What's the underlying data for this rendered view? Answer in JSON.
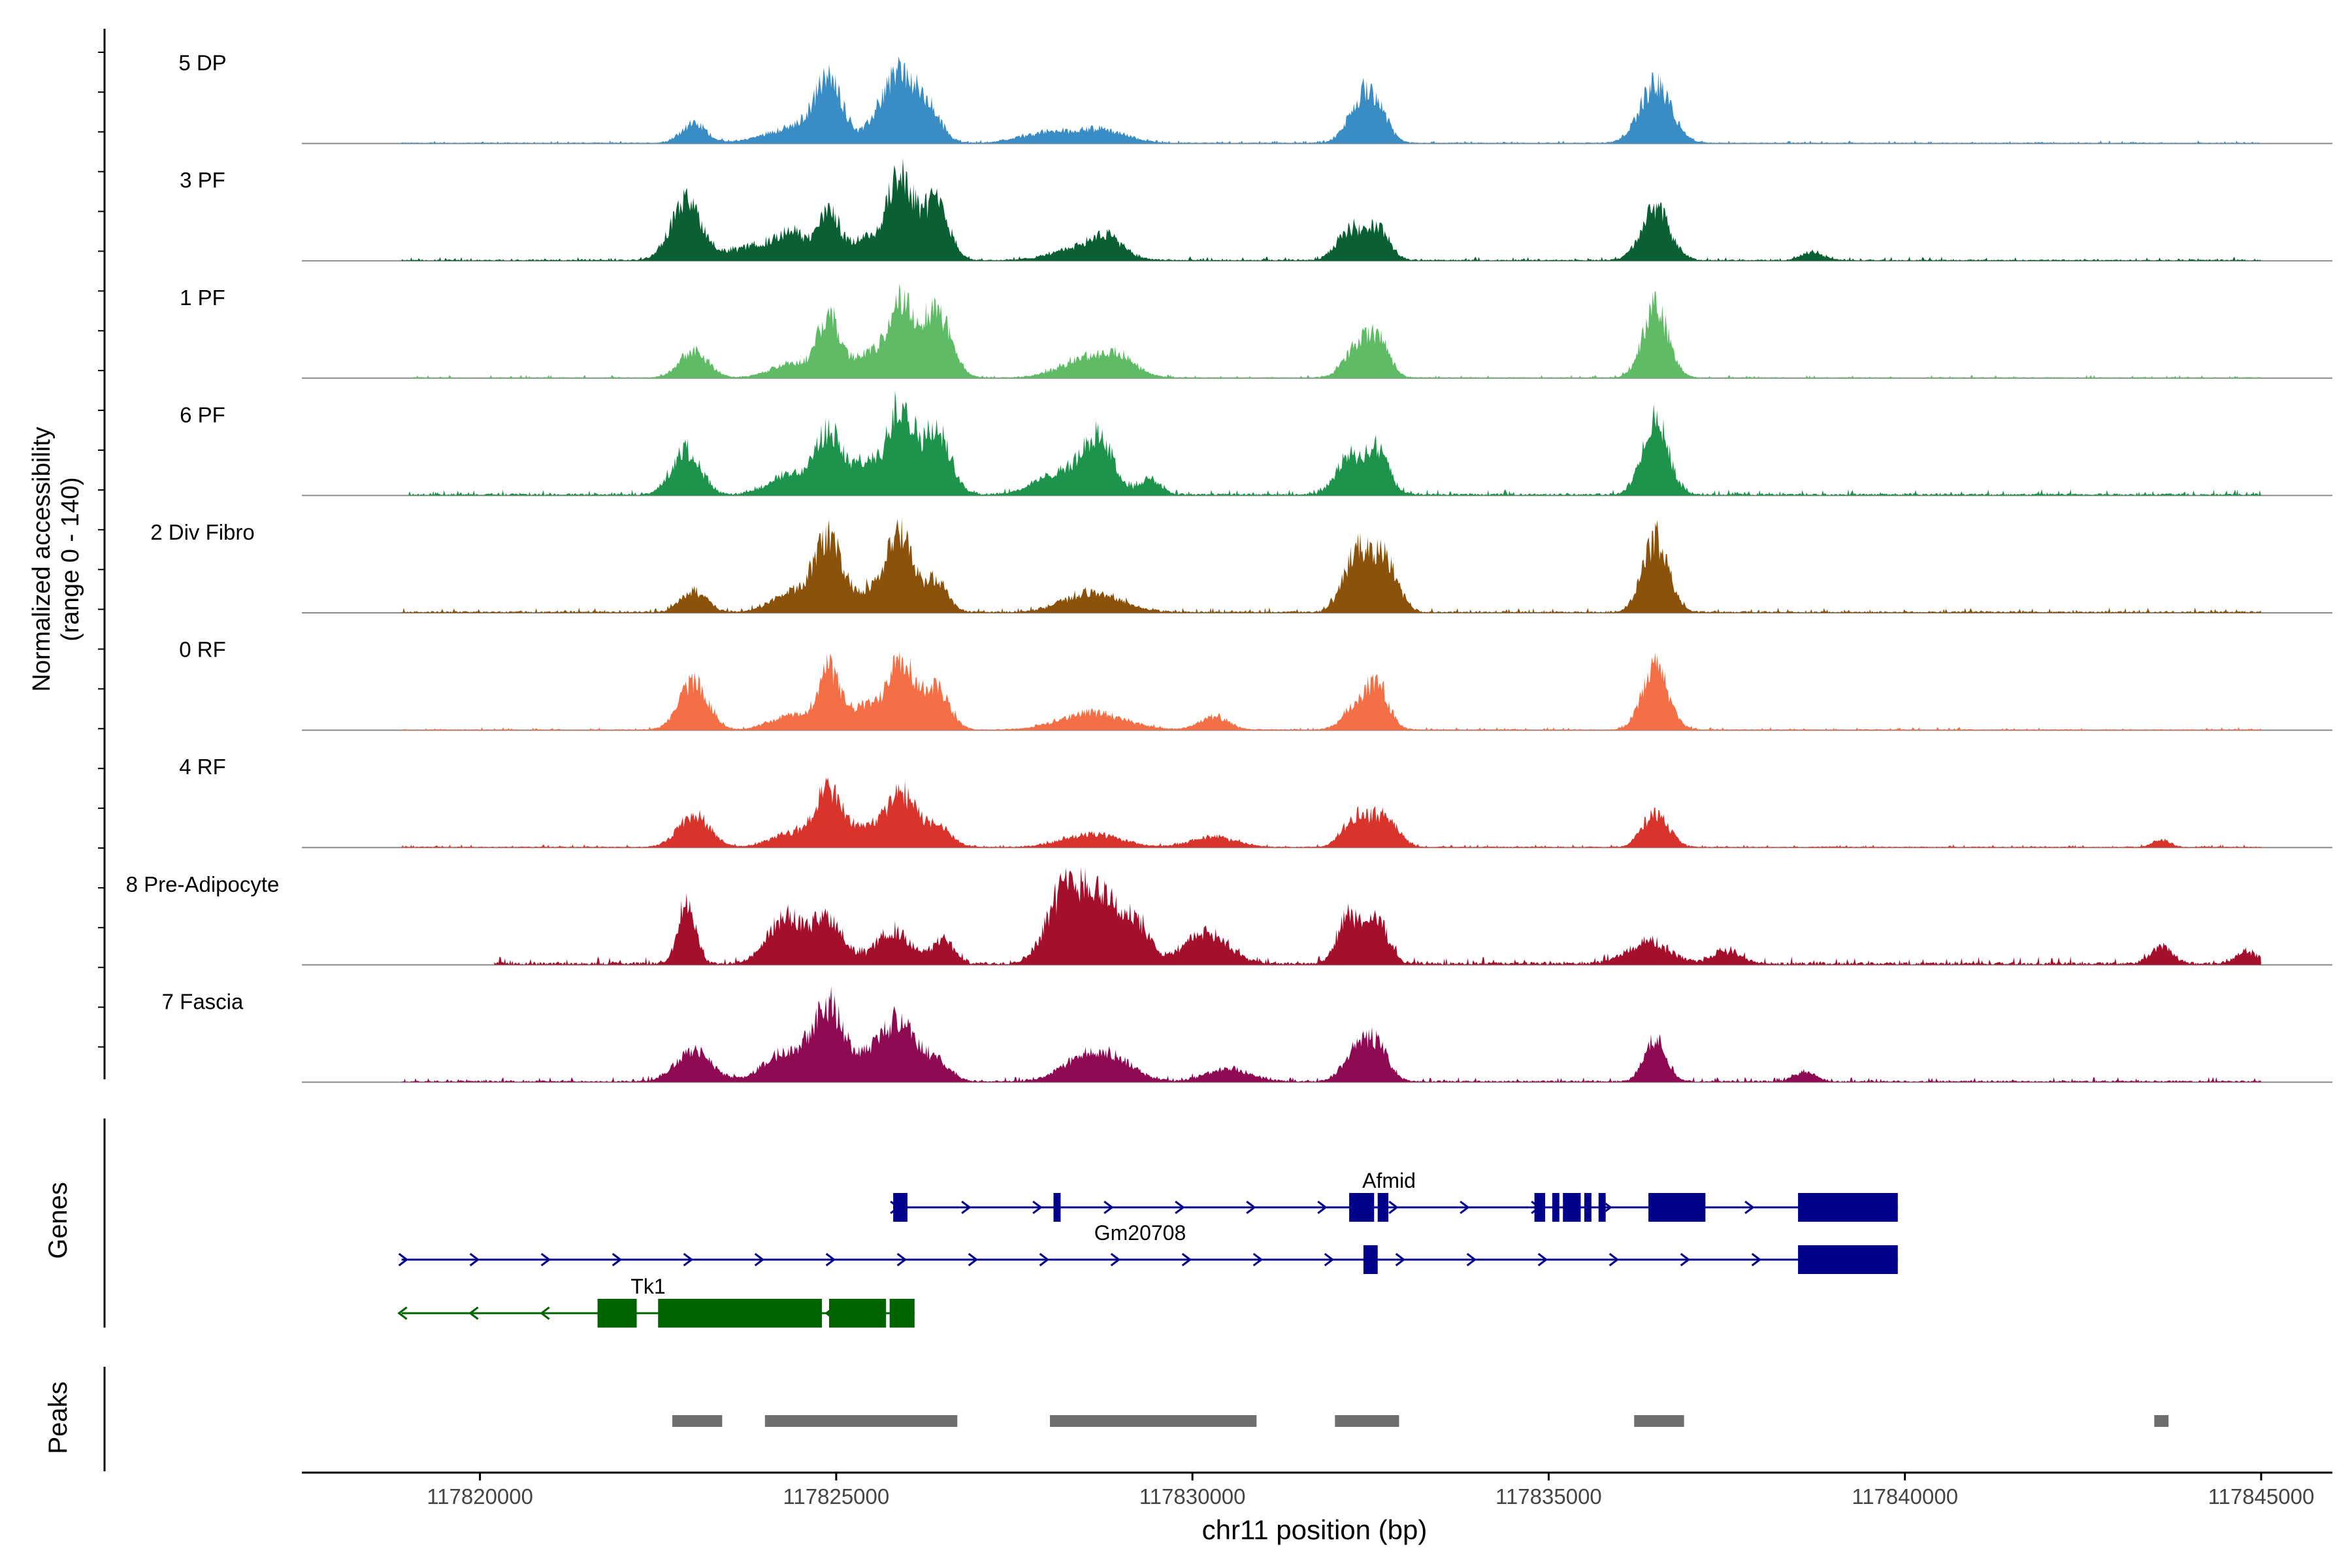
{
  "chart_data": {
    "type": "area",
    "chromosome": "chr11",
    "x_range": [
      117817500,
      117846000
    ],
    "y_label_line1": "Normalized accessibility",
    "y_label_line2": "(range 0 - 140)",
    "y_range": [
      0,
      140
    ],
    "xlabel": "chr11 position (bp)",
    "x_ticks": [
      117820000,
      117825000,
      117830000,
      117835000,
      117840000,
      117845000
    ],
    "tracks": [
      {
        "label": "5 DP",
        "color": "#3a8cc4",
        "noise": 3,
        "extent": [
          117818900,
          117845000
        ],
        "peaks": [
          [
            117823000,
            18,
            180
          ],
          [
            117824400,
            14,
            400
          ],
          [
            117824900,
            55,
            200
          ],
          [
            117825600,
            18,
            170
          ],
          [
            117825900,
            62,
            200
          ],
          [
            117826300,
            30,
            180
          ],
          [
            117827900,
            9,
            350
          ],
          [
            117828700,
            13,
            350
          ],
          [
            117832400,
            40,
            200
          ],
          [
            117832600,
            18,
            160
          ],
          [
            117836500,
            55,
            220
          ]
        ]
      },
      {
        "label": "3 PF",
        "color": "#0a6032",
        "noise": 4,
        "extent": [
          117818900,
          117845000
        ],
        "peaks": [
          [
            117822900,
            55,
            220
          ],
          [
            117823900,
            14,
            350
          ],
          [
            117824400,
            22,
            200
          ],
          [
            117824900,
            45,
            150
          ],
          [
            117825400,
            20,
            200
          ],
          [
            117825900,
            82,
            180
          ],
          [
            117826400,
            55,
            180
          ],
          [
            117828500,
            13,
            400
          ],
          [
            117828800,
            15,
            200
          ],
          [
            117832200,
            28,
            180
          ],
          [
            117832600,
            30,
            160
          ],
          [
            117836500,
            48,
            200
          ],
          [
            117838700,
            8,
            150
          ]
        ]
      },
      {
        "label": "1 PF",
        "color": "#5fbb65",
        "noise": 3,
        "extent": [
          117819000,
          117845000
        ],
        "peaks": [
          [
            117823000,
            26,
            200
          ],
          [
            117824400,
            14,
            300
          ],
          [
            117824900,
            55,
            150
          ],
          [
            117825400,
            22,
            200
          ],
          [
            117825900,
            70,
            180
          ],
          [
            117826400,
            65,
            200
          ],
          [
            117828600,
            20,
            400
          ],
          [
            117829000,
            10,
            200
          ],
          [
            117832300,
            26,
            180
          ],
          [
            117832600,
            35,
            160
          ],
          [
            117836500,
            65,
            180
          ]
        ]
      },
      {
        "label": "6 PF",
        "color": "#1e934b",
        "noise": 6,
        "extent": [
          117819000,
          117845000
        ],
        "peaks": [
          [
            117822900,
            42,
            200
          ],
          [
            117824400,
            20,
            300
          ],
          [
            117824900,
            55,
            170
          ],
          [
            117825400,
            30,
            200
          ],
          [
            117825900,
            85,
            170
          ],
          [
            117826400,
            60,
            200
          ],
          [
            117828300,
            25,
            400
          ],
          [
            117828700,
            42,
            180
          ],
          [
            117829400,
            14,
            150
          ],
          [
            117832200,
            36,
            180
          ],
          [
            117832600,
            40,
            160
          ],
          [
            117836500,
            70,
            180
          ]
        ]
      },
      {
        "label": "2 Div Fibro",
        "color": "#8b520c",
        "noise": 5,
        "extent": [
          117818900,
          117845000
        ],
        "peaks": [
          [
            117823000,
            20,
            180
          ],
          [
            117824400,
            18,
            300
          ],
          [
            117824900,
            65,
            200
          ],
          [
            117825500,
            20,
            200
          ],
          [
            117825900,
            70,
            180
          ],
          [
            117826400,
            30,
            160
          ],
          [
            117828600,
            18,
            400
          ],
          [
            117832300,
            55,
            180
          ],
          [
            117832700,
            50,
            180
          ],
          [
            117836500,
            68,
            180
          ]
        ]
      },
      {
        "label": "0 RF",
        "color": "#f46f45",
        "noise": 3,
        "extent": [
          117818900,
          117845000
        ],
        "peaks": [
          [
            117823000,
            45,
            200
          ],
          [
            117824400,
            14,
            300
          ],
          [
            117824900,
            55,
            150
          ],
          [
            117825400,
            22,
            200
          ],
          [
            117825900,
            70,
            180
          ],
          [
            117826400,
            40,
            180
          ],
          [
            117828600,
            16,
            450
          ],
          [
            117830300,
            12,
            200
          ],
          [
            117832300,
            22,
            180
          ],
          [
            117832600,
            38,
            160
          ],
          [
            117836500,
            60,
            180
          ]
        ]
      },
      {
        "label": "4 RF",
        "color": "#d8342c",
        "noise": 3,
        "extent": [
          117818900,
          117845000
        ],
        "peaks": [
          [
            117823000,
            30,
            220
          ],
          [
            117824400,
            14,
            300
          ],
          [
            117824900,
            52,
            180
          ],
          [
            117825400,
            18,
            200
          ],
          [
            117825900,
            50,
            200
          ],
          [
            117826400,
            20,
            200
          ],
          [
            117828600,
            12,
            400
          ],
          [
            117830300,
            10,
            300
          ],
          [
            117832300,
            28,
            180
          ],
          [
            117832700,
            28,
            180
          ],
          [
            117836500,
            32,
            180
          ],
          [
            117843600,
            7,
            120
          ]
        ]
      },
      {
        "label": "8 Pre-Adipocyte",
        "color": "#a40f2c",
        "noise": 8,
        "extent": [
          117820200,
          117845000
        ],
        "peaks": [
          [
            117822900,
            60,
            120
          ],
          [
            117824300,
            45,
            250
          ],
          [
            117824900,
            42,
            200
          ],
          [
            117825800,
            30,
            250
          ],
          [
            117826500,
            22,
            150
          ],
          [
            117828200,
            65,
            250
          ],
          [
            117828700,
            60,
            250
          ],
          [
            117829200,
            35,
            200
          ],
          [
            117830200,
            30,
            300
          ],
          [
            117832200,
            46,
            150
          ],
          [
            117832600,
            40,
            150
          ],
          [
            117836400,
            20,
            300
          ],
          [
            117837500,
            12,
            200
          ],
          [
            117843600,
            16,
            150
          ],
          [
            117844800,
            12,
            150
          ]
        ]
      },
      {
        "label": "7 Fascia",
        "color": "#8e0b53",
        "noise": 5,
        "extent": [
          117818900,
          117845000
        ],
        "peaks": [
          [
            117823000,
            28,
            250
          ],
          [
            117824300,
            28,
            300
          ],
          [
            117824900,
            70,
            220
          ],
          [
            117825500,
            22,
            200
          ],
          [
            117825900,
            55,
            220
          ],
          [
            117826400,
            18,
            200
          ],
          [
            117828400,
            18,
            300
          ],
          [
            117828900,
            20,
            300
          ],
          [
            117830500,
            12,
            300
          ],
          [
            117832300,
            28,
            180
          ],
          [
            117832600,
            32,
            160
          ],
          [
            117836500,
            40,
            150
          ],
          [
            117838600,
            9,
            150
          ]
        ]
      }
    ],
    "genes_label": "Genes",
    "genes": [
      {
        "name": "Afmid",
        "color": "#00008b",
        "strand": "+",
        "row": 0,
        "start": 117825800,
        "end": 117839900,
        "exons": [
          [
            117825800,
            117826000
          ],
          [
            117828050,
            117828150
          ],
          [
            117832200,
            117832550
          ],
          [
            117832600,
            117832750
          ],
          [
            117834800,
            117834950
          ],
          [
            117835050,
            117835150
          ],
          [
            117835200,
            117835450
          ],
          [
            117835500,
            117835600
          ],
          [
            117835700,
            117835800
          ],
          [
            117836400,
            117837200
          ],
          [
            117838500,
            117839900
          ]
        ]
      },
      {
        "name": "Gm20708",
        "color": "#00008b",
        "strand": "+",
        "row": 1,
        "start": 117818900,
        "end": 117839900,
        "exons": [
          [
            117832400,
            117832600
          ],
          [
            117838500,
            117839900
          ]
        ]
      },
      {
        "name": "Tk1",
        "color": "#006400",
        "strand": "-",
        "row": 2,
        "start": 117818900,
        "end": 117826100,
        "exons": [
          [
            117821650,
            117822200
          ],
          [
            117822500,
            117824800
          ],
          [
            117824900,
            117825700
          ],
          [
            117825750,
            117826100
          ]
        ]
      }
    ],
    "peaks_label": "Peaks",
    "peak_regions": [
      [
        117822700,
        117823400
      ],
      [
        117824000,
        117826700
      ],
      [
        117828000,
        117830900
      ],
      [
        117832000,
        117832900
      ],
      [
        117836200,
        117836900
      ],
      [
        117843500,
        117843700
      ]
    ]
  }
}
